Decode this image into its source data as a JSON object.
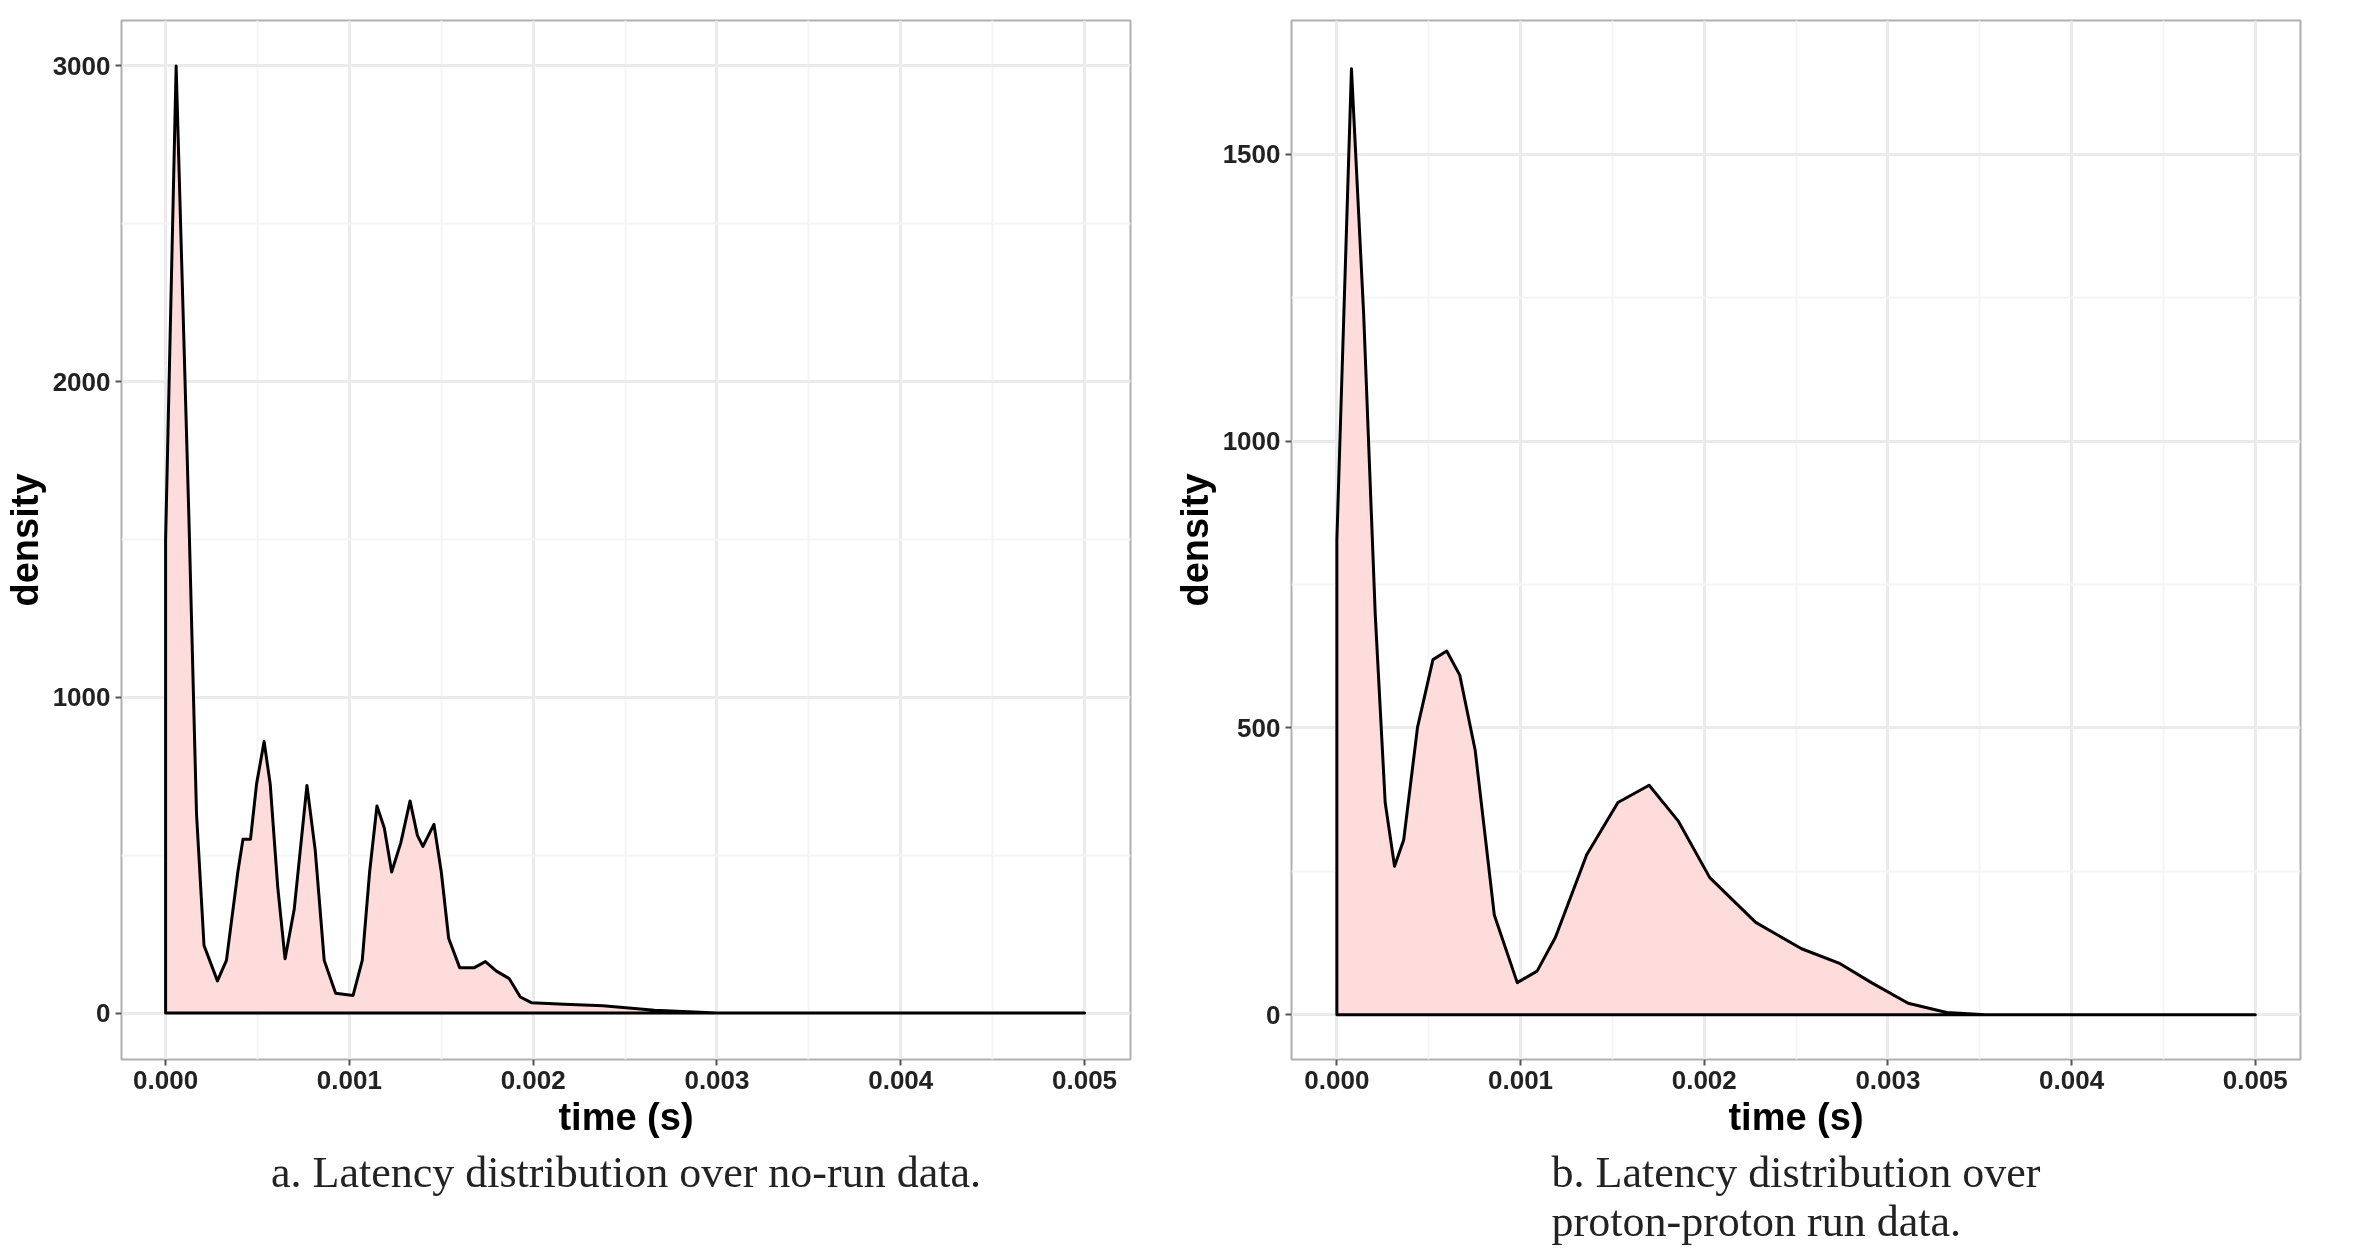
{
  "chart_data": [
    {
      "type": "area",
      "xlabel": "time (s)",
      "ylabel": "density",
      "color": "#ffdcdc",
      "grid": true,
      "xlim": [
        -0.00024,
        0.00525
      ],
      "ylim": [
        -147,
        3144
      ],
      "xticks": [
        {
          "value": 0,
          "label": "0.000"
        },
        {
          "value": 0.001,
          "label": "0.001"
        },
        {
          "value": 0.002,
          "label": "0.002"
        },
        {
          "value": 0.003,
          "label": "0.003"
        },
        {
          "value": 0.004,
          "label": "0.004"
        },
        {
          "value": 0.005,
          "label": "0.005"
        }
      ],
      "yticks": [
        0,
        1000,
        2000,
        3000
      ],
      "x": [
        0,
        0,
        5.73e-05,
        0.000127,
        0.000168,
        0.000209,
        0.000282,
        0.000331,
        0.000393,
        0.000421,
        0.000462,
        0.000495,
        0.000536,
        0.000569,
        0.00061,
        0.00065,
        0.0007,
        0.000769,
        0.000814,
        0.000863,
        0.000925,
        0.00102,
        0.00107,
        0.00111,
        0.00115,
        0.00119,
        0.00123,
        0.00128,
        0.00133,
        0.00137,
        0.0014,
        0.00146,
        0.0015,
        0.00154,
        0.0016,
        0.00168,
        0.00174,
        0.0018,
        0.00187,
        0.00193,
        0.00199,
        0.00217,
        0.00238,
        0.00266,
        0.003,
        0.005
      ],
      "values": [
        0,
        1500,
        3000,
        1563,
        633,
        214,
        102,
        167,
        447,
        551,
        551,
        726,
        860,
        726,
        400,
        172,
        330,
        721,
        516,
        167,
        63,
        56,
        167,
        447,
        656,
        586,
        447,
        540,
        672,
        563,
        528,
        598,
        447,
        237,
        144,
        144,
        163,
        133,
        109,
        51,
        33,
        28,
        23,
        9,
        0,
        0
      ],
      "annotations": [
        "a. Latency distribution over no-run data."
      ]
    },
    {
      "type": "area",
      "xlabel": "time (s)",
      "ylabel": "density",
      "color": "#ffdcdc",
      "grid": true,
      "xlim": [
        -0.000247,
        0.005246
      ],
      "ylim": [
        -78,
        1733
      ],
      "xticks": [
        {
          "value": 0,
          "label": "0.000"
        },
        {
          "value": 0.001,
          "label": "0.001"
        },
        {
          "value": 0.002,
          "label": "0.002"
        },
        {
          "value": 0.003,
          "label": "0.003"
        },
        {
          "value": 0.004,
          "label": "0.004"
        },
        {
          "value": 0.005,
          "label": "0.005"
        }
      ],
      "yticks": [
        0,
        500,
        1000,
        1500
      ],
      "x": [
        0,
        0,
        7.94e-05,
        0.000146,
        0.000209,
        0.000263,
        0.000314,
        0.000364,
        0.000439,
        0.000523,
        0.000598,
        0.000669,
        0.000753,
        0.000857,
        0.000982,
        0.00109,
        0.00119,
        0.00136,
        0.00153,
        0.0017,
        0.00186,
        0.00203,
        0.00228,
        0.00253,
        0.00274,
        0.00291,
        0.00311,
        0.00332,
        0.00353,
        0.005
      ],
      "values": [
        0,
        828,
        1649,
        1220,
        697,
        370,
        259,
        305,
        501,
        619,
        634,
        592,
        461,
        174,
        56,
        76,
        135,
        279,
        370,
        400,
        337,
        239,
        161,
        115,
        89,
        56,
        20,
        4,
        0,
        0
      ],
      "annotations": [
        "b. Latency distribution over proton-proton run data."
      ]
    }
  ]
}
